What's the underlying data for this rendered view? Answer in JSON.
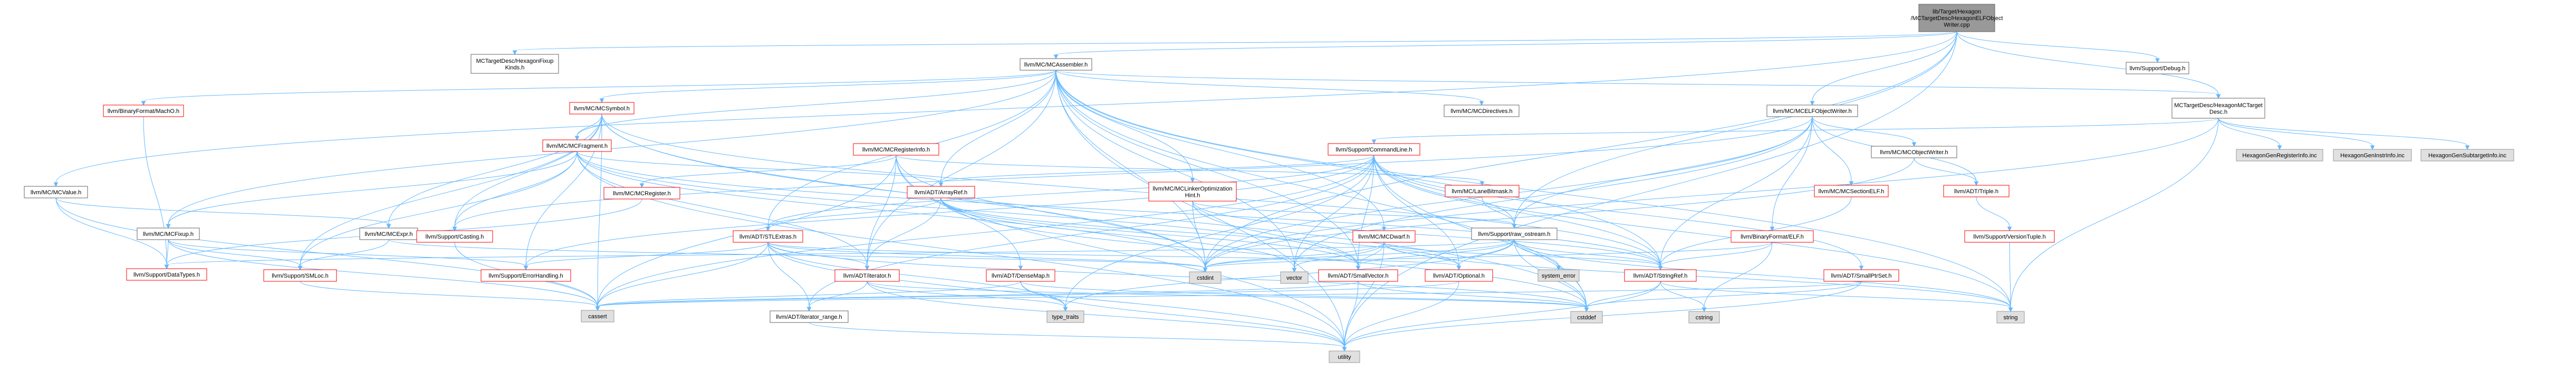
{
  "colors": {
    "root_fill": "#999999",
    "doc_fill": "#ffffff",
    "doc_stroke": "#ff0000",
    "nodoc_fill": "#e0e0e0",
    "nodoc_stroke": "#999999",
    "plain_stroke": "#666666",
    "edge": "#63b8ff"
  },
  "nodes": [
    {
      "id": "root",
      "label": [
        "lib/Target/Hexagon",
        "/MCTargetDesc/HexagonELFObject",
        "Writer.cpp"
      ],
      "style": "root"
    },
    {
      "id": "fixupkinds",
      "label": [
        "MCTargetDesc/HexagonFixup",
        "Kinds.h"
      ],
      "style": "plain"
    },
    {
      "id": "mcasm",
      "label": [
        "llvm/MC/MCAssembler.h"
      ],
      "style": "plain"
    },
    {
      "id": "debug",
      "label": [
        "llvm/Support/Debug.h"
      ],
      "style": "plain"
    },
    {
      "id": "machobf",
      "label": [
        "llvm/BinaryFormat/MachO.h"
      ],
      "style": "doc"
    },
    {
      "id": "mcsym",
      "label": [
        "llvm/MC/MCSymbol.h"
      ],
      "style": "doc"
    },
    {
      "id": "mcdirectives",
      "label": [
        "llvm/MC/MCDirectives.h"
      ],
      "style": "plain"
    },
    {
      "id": "mcelfow",
      "label": [
        "llvm/MC/MCELFObjectWriter.h"
      ],
      "style": "plain"
    },
    {
      "id": "hexmctarget",
      "label": [
        "MCTargetDesc/HexagonMCTarget",
        "Desc.h"
      ],
      "style": "plain"
    },
    {
      "id": "mcfrag",
      "label": [
        "llvm/MC/MCFragment.h"
      ],
      "style": "doc"
    },
    {
      "id": "mcreginfo",
      "label": [
        "llvm/MC/MCRegisterInfo.h"
      ],
      "style": "doc"
    },
    {
      "id": "cmdline",
      "label": [
        "llvm/Support/CommandLine.h"
      ],
      "style": "doc"
    },
    {
      "id": "mcobjw",
      "label": [
        "llvm/MC/MCObjectWriter.h"
      ],
      "style": "plain"
    },
    {
      "id": "hexreginfo",
      "label": [
        "HexagonGenRegisterInfo.inc"
      ],
      "style": "nodoc"
    },
    {
      "id": "hexinstrinfo",
      "label": [
        "HexagonGenInstrInfo.inc"
      ],
      "style": "nodoc"
    },
    {
      "id": "hexsubtarget",
      "label": [
        "HexagonGenSubtargetInfo.inc"
      ],
      "style": "nodoc"
    },
    {
      "id": "mcvalue",
      "label": [
        "llvm/MC/MCValue.h"
      ],
      "style": "plain"
    },
    {
      "id": "mcregister",
      "label": [
        "llvm/MC/MCRegister.h"
      ],
      "style": "doc"
    },
    {
      "id": "arrayref",
      "label": [
        "llvm/ADT/ArrayRef.h"
      ],
      "style": "doc"
    },
    {
      "id": "mclinkopt",
      "label": [
        "llvm/MC/MCLinkerOptimization",
        "Hint.h"
      ],
      "style": "doc"
    },
    {
      "id": "lanebitmask",
      "label": [
        "llvm/MC/LaneBitmask.h"
      ],
      "style": "doc"
    },
    {
      "id": "mcsectionelf",
      "label": [
        "llvm/MC/MCSectionELF.h"
      ],
      "style": "doc"
    },
    {
      "id": "triple",
      "label": [
        "llvm/ADT/Triple.h"
      ],
      "style": "doc"
    },
    {
      "id": "mcfixup",
      "label": [
        "llvm/MC/MCFixup.h"
      ],
      "style": "plain"
    },
    {
      "id": "mcexpr",
      "label": [
        "llvm/MC/MCExpr.h"
      ],
      "style": "plain"
    },
    {
      "id": "casting",
      "label": [
        "llvm/Support/Casting.h"
      ],
      "style": "doc"
    },
    {
      "id": "stlextras",
      "label": [
        "llvm/ADT/STLExtras.h"
      ],
      "style": "doc"
    },
    {
      "id": "mcdwarf",
      "label": [
        "llvm/MC/MCDwarf.h"
      ],
      "style": "doc"
    },
    {
      "id": "rawostream",
      "label": [
        "llvm/Support/raw_ostream.h"
      ],
      "style": "plain"
    },
    {
      "id": "elfbf",
      "label": [
        "llvm/BinaryFormat/ELF.h"
      ],
      "style": "doc"
    },
    {
      "id": "versiontuple",
      "label": [
        "llvm/Support/VersionTuple.h"
      ],
      "style": "doc"
    },
    {
      "id": "datatypes",
      "label": [
        "llvm/Support/DataTypes.h"
      ],
      "style": "doc"
    },
    {
      "id": "smloc",
      "label": [
        "llvm/Support/SMLoc.h"
      ],
      "style": "doc"
    },
    {
      "id": "errorhandling",
      "label": [
        "llvm/Support/ErrorHandling.h"
      ],
      "style": "doc"
    },
    {
      "id": "iterator",
      "label": [
        "llvm/ADT/iterator.h"
      ],
      "style": "doc"
    },
    {
      "id": "densemap",
      "label": [
        "llvm/ADT/DenseMap.h"
      ],
      "style": "doc"
    },
    {
      "id": "cstdint",
      "label": [
        "cstdint"
      ],
      "style": "nodoc"
    },
    {
      "id": "vector",
      "label": [
        "vector"
      ],
      "style": "nodoc"
    },
    {
      "id": "smallvector",
      "label": [
        "llvm/ADT/SmallVector.h"
      ],
      "style": "doc"
    },
    {
      "id": "optional",
      "label": [
        "llvm/ADT/Optional.h"
      ],
      "style": "doc"
    },
    {
      "id": "systemerror",
      "label": [
        "system_error"
      ],
      "style": "nodoc"
    },
    {
      "id": "stringref",
      "label": [
        "llvm/ADT/StringRef.h"
      ],
      "style": "doc"
    },
    {
      "id": "smallptrset",
      "label": [
        "llvm/ADT/SmallPtrSet.h"
      ],
      "style": "doc"
    },
    {
      "id": "cassert",
      "label": [
        "cassert"
      ],
      "style": "nodoc"
    },
    {
      "id": "iteratorrange",
      "label": [
        "llvm/ADT/iterator_range.h"
      ],
      "style": "plain"
    },
    {
      "id": "typetraits",
      "label": [
        "type_traits"
      ],
      "style": "nodoc"
    },
    {
      "id": "cstddef",
      "label": [
        "cstddef"
      ],
      "style": "nodoc"
    },
    {
      "id": "cstring",
      "label": [
        "cstring"
      ],
      "style": "nodoc"
    },
    {
      "id": "string",
      "label": [
        "string"
      ],
      "style": "nodoc"
    },
    {
      "id": "utility",
      "label": [
        "utility"
      ],
      "style": "nodoc"
    }
  ],
  "edges": [
    [
      "root",
      "fixupkinds"
    ],
    [
      "root",
      "mcasm"
    ],
    [
      "root",
      "mcelfow"
    ],
    [
      "root",
      "hexmctarget"
    ],
    [
      "root",
      "debug"
    ],
    [
      "root",
      "mcvalue"
    ],
    [
      "root",
      "rawostream"
    ],
    [
      "root",
      "utility"
    ],
    [
      "root",
      "cstdint"
    ],
    [
      "mcasm",
      "machobf"
    ],
    [
      "mcasm",
      "mcsym"
    ],
    [
      "mcasm",
      "mcdirectives"
    ],
    [
      "mcasm",
      "mcfrag"
    ],
    [
      "mcasm",
      "mclinkopt"
    ],
    [
      "mcasm",
      "mcdwarf"
    ],
    [
      "mcasm",
      "mcfixup"
    ],
    [
      "mcasm",
      "arrayref"
    ],
    [
      "mcasm",
      "stringref"
    ],
    [
      "mcasm",
      "smallvector"
    ],
    [
      "mcasm",
      "stlextras"
    ],
    [
      "mcasm",
      "cstddef"
    ],
    [
      "mcasm",
      "cstdint"
    ],
    [
      "mcasm",
      "string"
    ],
    [
      "mcasm",
      "vector"
    ],
    [
      "mcasm",
      "utility"
    ],
    [
      "mcasm",
      "iterator"
    ],
    [
      "mcasm",
      "hexmctarget"
    ],
    [
      "machobf",
      "datatypes"
    ],
    [
      "mcsym",
      "mcexpr"
    ],
    [
      "mcsym",
      "mcfrag"
    ],
    [
      "mcsym",
      "stringref"
    ],
    [
      "mcsym",
      "smloc"
    ],
    [
      "mcsym",
      "errorhandling"
    ],
    [
      "mcsym",
      "cassert"
    ],
    [
      "mcsym",
      "cstddef"
    ],
    [
      "mcsym",
      "cstdint"
    ],
    [
      "mcsym",
      "casting"
    ],
    [
      "mcelfow",
      "triple"
    ],
    [
      "mcelfow",
      "elfbf"
    ],
    [
      "mcelfow",
      "mcobjw"
    ],
    [
      "mcelfow",
      "mcsectionelf"
    ],
    [
      "mcelfow",
      "casting"
    ],
    [
      "mcelfow",
      "rawostream"
    ],
    [
      "mcelfow",
      "vector"
    ],
    [
      "mcelfow",
      "cstdint"
    ],
    [
      "mcelfow",
      "stringref"
    ],
    [
      "hexmctarget",
      "hexreginfo"
    ],
    [
      "hexmctarget",
      "hexinstrinfo"
    ],
    [
      "hexmctarget",
      "hexsubtarget"
    ],
    [
      "hexmctarget",
      "cmdline"
    ],
    [
      "hexmctarget",
      "cstdint"
    ],
    [
      "hexmctarget",
      "string"
    ],
    [
      "mcfrag",
      "arrayref"
    ],
    [
      "mcfrag",
      "smallvector"
    ],
    [
      "mcfrag",
      "stringref"
    ],
    [
      "mcfrag",
      "iterator"
    ],
    [
      "mcfrag",
      "mcfixup"
    ],
    [
      "mcfrag",
      "mcinst"
    ],
    [
      "mcfrag",
      "casting"
    ],
    [
      "mcfrag",
      "smloc"
    ],
    [
      "mcfrag",
      "cstdint"
    ],
    [
      "mcfrag",
      "utility"
    ],
    [
      "mcreginfo",
      "mcregister"
    ],
    [
      "mcreginfo",
      "lanebitmask"
    ],
    [
      "mcreginfo",
      "densemap"
    ],
    [
      "mcreginfo",
      "iterator"
    ],
    [
      "mcreginfo",
      "cassert"
    ],
    [
      "mcreginfo",
      "cstdint"
    ],
    [
      "mcreginfo",
      "utility"
    ],
    [
      "cmdline",
      "stringref"
    ],
    [
      "cmdline",
      "smallvector"
    ],
    [
      "cmdline",
      "stlextras"
    ],
    [
      "cmdline",
      "smallptrset"
    ],
    [
      "cmdline",
      "errorhandling"
    ],
    [
      "cmdline",
      "rawostream"
    ],
    [
      "cmdline",
      "arrayref"
    ],
    [
      "cmdline",
      "optional"
    ],
    [
      "cmdline",
      "cassert"
    ],
    [
      "cmdline",
      "cstddef"
    ],
    [
      "cmdline",
      "string"
    ],
    [
      "cmdline",
      "typetraits"
    ],
    [
      "cmdline",
      "vector"
    ],
    [
      "cmdline",
      "iteratorrange"
    ],
    [
      "mcobjw",
      "triple"
    ],
    [
      "mcobjw",
      "cstdint"
    ],
    [
      "mcvalue",
      "mcexpr"
    ],
    [
      "mcvalue",
      "datatypes"
    ],
    [
      "mcvalue",
      "cassert"
    ],
    [
      "mcregister",
      "datatypes"
    ],
    [
      "arrayref",
      "stlextras"
    ],
    [
      "arrayref",
      "smallvector"
    ],
    [
      "arrayref",
      "cstddef"
    ],
    [
      "arrayref",
      "vector"
    ],
    [
      "arrayref",
      "iterator"
    ],
    [
      "arrayref",
      "optional"
    ],
    [
      "mclinkopt",
      "smallvector"
    ],
    [
      "mclinkopt",
      "stringref"
    ],
    [
      "mclinkopt",
      "rawostream"
    ],
    [
      "mclinkopt",
      "cstdint"
    ],
    [
      "lanebitmask",
      "rawostream"
    ],
    [
      "mcsectionelf",
      "stringref"
    ],
    [
      "triple",
      "versiontuple"
    ],
    [
      "mcfixup",
      "datatypes"
    ],
    [
      "mcfixup",
      "errorhandling"
    ],
    [
      "mcfixup",
      "smloc"
    ],
    [
      "mcfixup",
      "cassert"
    ],
    [
      "mcexpr",
      "smloc"
    ],
    [
      "mcexpr",
      "cstdint"
    ],
    [
      "casting",
      "cassert"
    ],
    [
      "stlextras",
      "iterator"
    ],
    [
      "stlextras",
      "iteratorrange"
    ],
    [
      "stlextras",
      "errorhandling"
    ],
    [
      "stlextras",
      "optional"
    ],
    [
      "stlextras",
      "cassert"
    ],
    [
      "stlextras",
      "cstddef"
    ],
    [
      "stlextras",
      "cstdint"
    ],
    [
      "stlextras",
      "typetraits"
    ],
    [
      "stlextras",
      "utility"
    ],
    [
      "mcdwarf",
      "stringref"
    ],
    [
      "mcdwarf",
      "smallvector"
    ],
    [
      "mcdwarf",
      "optional"
    ],
    [
      "mcdwarf",
      "string"
    ],
    [
      "mcdwarf",
      "cstdint"
    ],
    [
      "mcdwarf",
      "utility"
    ],
    [
      "mcdwarf",
      "vector"
    ],
    [
      "rawostream",
      "stringref"
    ],
    [
      "rawostream",
      "smallvector"
    ],
    [
      "rawostream",
      "datatypes"
    ],
    [
      "rawostream",
      "optional"
    ],
    [
      "rawostream",
      "systemerror"
    ],
    [
      "rawostream",
      "cstddef"
    ],
    [
      "rawostream",
      "cstdint"
    ],
    [
      "rawostream",
      "string"
    ],
    [
      "rawostream",
      "typetraits"
    ],
    [
      "elfbf",
      "stringref"
    ],
    [
      "elfbf",
      "cstdint"
    ],
    [
      "elfbf",
      "cstring"
    ],
    [
      "versiontuple",
      "string"
    ],
    [
      "smloc",
      "cassert"
    ],
    [
      "iterator",
      "iteratorrange"
    ],
    [
      "iterator",
      "cstddef"
    ],
    [
      "iterator",
      "typetraits"
    ],
    [
      "iterator",
      "utility"
    ],
    [
      "densemap",
      "cassert"
    ],
    [
      "densemap",
      "cstddef"
    ],
    [
      "densemap",
      "typetraits"
    ],
    [
      "densemap",
      "utility"
    ],
    [
      "smallvector",
      "cassert"
    ],
    [
      "smallvector",
      "cstddef"
    ],
    [
      "smallvector",
      "utility"
    ],
    [
      "optional",
      "cassert"
    ],
    [
      "optional",
      "utility"
    ],
    [
      "stringref",
      "cstddef"
    ],
    [
      "stringref",
      "cstring"
    ],
    [
      "stringref",
      "string"
    ],
    [
      "stringref",
      "utility"
    ],
    [
      "smallptrset",
      "cstddef"
    ],
    [
      "smallptrset",
      "utility"
    ],
    [
      "smallptrset",
      "cassert"
    ],
    [
      "iteratorrange",
      "utility"
    ]
  ]
}
